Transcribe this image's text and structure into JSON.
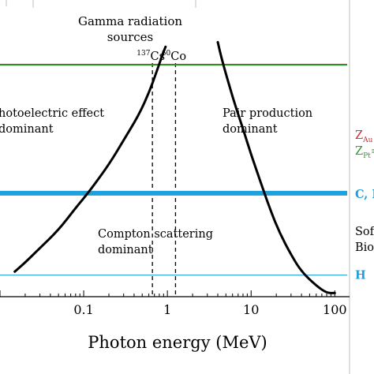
{
  "chart_data": {
    "type": "line",
    "title": "",
    "xlabel": "Photon energy (MeV)",
    "ylabel": "",
    "x_scale": "log",
    "xlim": [
      0.01,
      150
    ],
    "x_ticks": [
      {
        "value": 0.1,
        "label": "0.1"
      },
      {
        "value": 1,
        "label": "1"
      },
      {
        "value": 10,
        "label": "10"
      },
      {
        "value": 100,
        "label": "100"
      }
    ],
    "y_scale": "log",
    "ylim": [
      1,
      130
    ],
    "y_axis_note": "atomic number Z (axis not printed)",
    "grid": false,
    "regions": {
      "photoelectric": "hotoelectric effect\ndominant",
      "compton": "Compton scattering\ndominant",
      "pair": "Pair production\ndominant"
    },
    "gamma_sources": {
      "header": "Gamma radiation\nsources",
      "lines": [
        {
          "iso": "137",
          "el": "Cs",
          "energy": 0.662
        },
        {
          "iso": "60",
          "el": "Co",
          "energy": 1.25
        }
      ]
    },
    "series": [
      {
        "name": "",
        "x": [
          0.015,
          0.02,
          0.03,
          0.05,
          0.08,
          0.12,
          0.2,
          0.3,
          0.45,
          0.6,
          0.75,
          0.85,
          0.95
        ],
        "y": [
          1.6,
          1.9,
          2.5,
          3.5,
          5.3,
          7.4,
          12,
          19,
          30,
          46,
          70,
          90,
          110
        ]
      },
      {
        "name": "",
        "x": [
          4.0,
          4.5,
          5.4,
          6.5,
          8,
          10,
          13,
          17,
          22,
          30,
          40,
          60,
          80,
          100
        ],
        "y": [
          120,
          85,
          55,
          36,
          23.5,
          14.5,
          8.6,
          5.1,
          3.3,
          2.2,
          1.6,
          1.23,
          1.07,
          1.07
        ]
      }
    ],
    "reference_lines": [
      {
        "label_main": "Z",
        "label_sub": "Au",
        "label_tail": "",
        "value": 79,
        "color": "#d42a2a"
      },
      {
        "label_main": "Z",
        "label_sub": "Pt",
        "label_tail": "=",
        "value": 78,
        "color": "#2e9a2e"
      },
      {
        "label_main": "C, N",
        "label_sub": "",
        "label_tail": "",
        "value": 7,
        "color": "#1ea0dc"
      },
      {
        "label_main": "H",
        "label_sub": "",
        "label_tail": "",
        "value": 1.5,
        "color": "#1ea0dc"
      }
    ],
    "side_note": {
      "lines": [
        "Sof",
        "Bio"
      ]
    }
  }
}
